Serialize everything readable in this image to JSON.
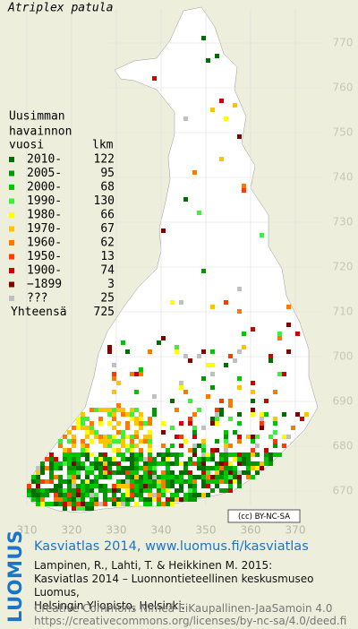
{
  "title": "Atriplex patula",
  "map": {
    "y_labels": [
      770,
      760,
      750,
      740,
      730,
      720,
      710,
      700,
      690,
      680,
      670
    ],
    "x_labels": [
      310,
      320,
      330,
      340,
      350,
      360,
      370
    ]
  },
  "legend": {
    "heading": [
      "Uusimman",
      "havainnon"
    ],
    "year_header": "vuosi",
    "count_header": "lkm",
    "entries": [
      {
        "label": "2010-",
        "count": 122,
        "color": "#006e00"
      },
      {
        "label": "2005-",
        "count": 95,
        "color": "#009a00"
      },
      {
        "label": "2000-",
        "count": 68,
        "color": "#00c800"
      },
      {
        "label": "1990-",
        "count": 130,
        "color": "#3cf03c"
      },
      {
        "label": "1980-",
        "count": 66,
        "color": "#ffff00"
      },
      {
        "label": "1970-",
        "count": 67,
        "color": "#ffc400"
      },
      {
        "label": "1960-",
        "count": 62,
        "color": "#ff7800"
      },
      {
        "label": "1950-",
        "count": 13,
        "color": "#ff3c00"
      },
      {
        "label": "1900-",
        "count": 74,
        "color": "#d00000"
      },
      {
        "label": "−1899",
        "count": 3,
        "color": "#800000"
      },
      {
        "label": "???",
        "count": 25,
        "color": "#c0c0c0"
      }
    ],
    "total_label": "Yhteensä",
    "total": 725
  },
  "license_badge": "(cc) BY-NC-SA",
  "footer": {
    "logo": "LUOMUS",
    "headline": "Kasviatlas 2014, www.luomus.fi/kasviatlas",
    "citation": [
      "Lampinen, R., Lahti, T. & Heikkinen M. 2015:",
      "Kasviatlas 2014 – Luonnontieteellinen keskusmuseo Luomus,",
      "Helsingin Yliopisto, Helsinki."
    ],
    "license": [
      "Creative Commons Nimeä-EiKaupallinen-JaaSamoin 4.0",
      "https://creativecommons.org/licenses/by-nc-sa/4.0/deed.fi"
    ]
  }
}
